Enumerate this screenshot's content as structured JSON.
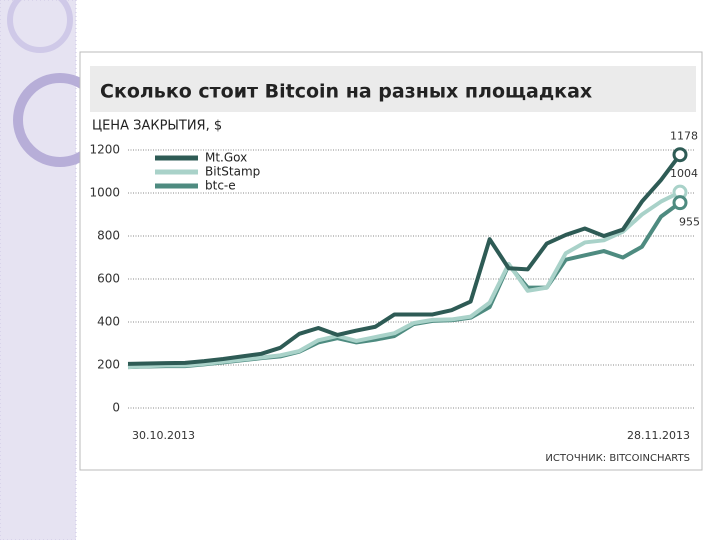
{
  "chart_data": {
    "type": "line",
    "title": "Сколько стоит Bitcoin на разных площадках",
    "y_label": "ЦЕНА ЗАКРЫТИЯ, $",
    "source": "ИСТОЧНИК: BITCOINCHARTS",
    "categories": [
      "30.10.2013",
      null,
      null,
      null,
      null,
      null,
      null,
      null,
      null,
      null,
      null,
      null,
      null,
      null,
      null,
      null,
      null,
      null,
      null,
      null,
      null,
      null,
      null,
      null,
      null,
      null,
      null,
      null,
      null,
      "28.11.2013"
    ],
    "series": [
      {
        "name": "Mt.Gox",
        "color": "#2e5b55",
        "values": [
          205,
          207,
          209,
          210,
          218,
          228,
          240,
          252,
          280,
          345,
          372,
          340,
          360,
          378,
          435,
          435,
          435,
          455,
          495,
          785,
          650,
          645,
          765,
          805,
          835,
          800,
          830,
          960,
          1060,
          1178
        ]
      },
      {
        "name": "BitStamp",
        "color": "#a9d2c9",
        "values": [
          190,
          195,
          198,
          198,
          205,
          215,
          225,
          235,
          245,
          265,
          315,
          335,
          312,
          330,
          348,
          395,
          410,
          412,
          425,
          490,
          670,
          545,
          560,
          720,
          770,
          780,
          820,
          900,
          960,
          1004
        ]
      },
      {
        "name": "btc-e",
        "color": "#4e8b80",
        "values": [
          190,
          193,
          195,
          195,
          203,
          212,
          222,
          232,
          240,
          262,
          305,
          325,
          305,
          318,
          335,
          390,
          405,
          408,
          420,
          470,
          665,
          560,
          560,
          690,
          710,
          730,
          700,
          750,
          890,
          955
        ]
      }
    ],
    "ylim": [
      0,
      1200
    ],
    "yticks": [
      0,
      200,
      400,
      600,
      800,
      1000,
      1200
    ],
    "grid": true,
    "legend": "upper left"
  }
}
